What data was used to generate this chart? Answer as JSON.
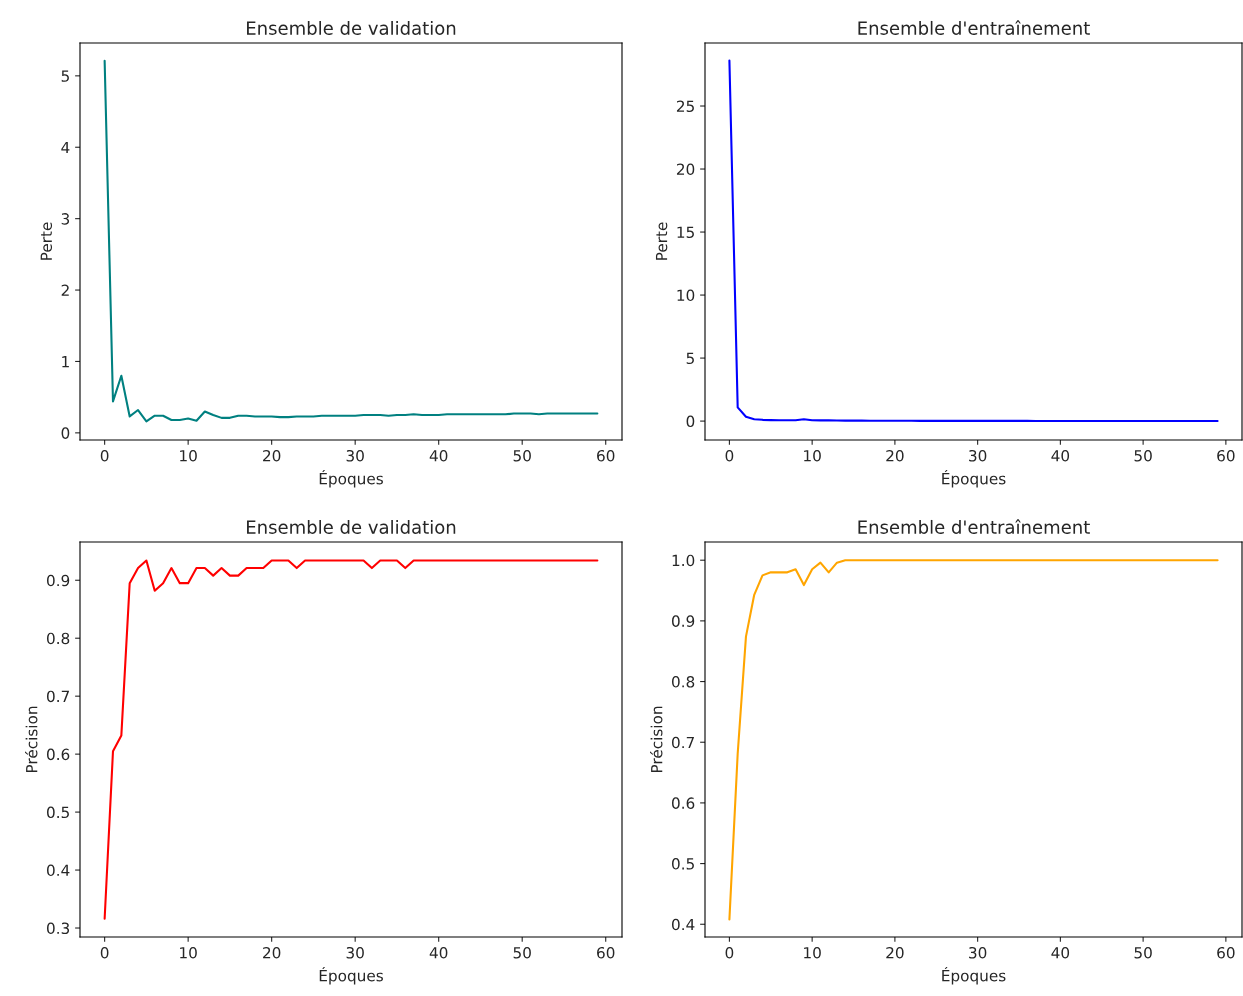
{
  "chart_data": [
    {
      "type": "line",
      "title": "Ensemble de validation",
      "xlabel": "Époques",
      "ylabel": "Perte",
      "xlim": [
        -2.95,
        61.95
      ],
      "xticks": [
        0,
        10,
        20,
        30,
        40,
        50,
        60
      ],
      "ylim": [
        -0.1,
        5.46
      ],
      "yticks": [
        0,
        1,
        2,
        3,
        4,
        5
      ],
      "grid": false,
      "series": [
        {
          "color": "#008080",
          "x": [
            0,
            1,
            2,
            3,
            4,
            5,
            6,
            7,
            8,
            9,
            10,
            11,
            12,
            13,
            14,
            15,
            16,
            17,
            18,
            19,
            20,
            21,
            22,
            23,
            24,
            25,
            26,
            27,
            28,
            29,
            30,
            31,
            32,
            33,
            34,
            35,
            36,
            37,
            38,
            39,
            40,
            41,
            42,
            43,
            44,
            45,
            46,
            47,
            48,
            49,
            50,
            51,
            52,
            53,
            54,
            55,
            56,
            57,
            58,
            59
          ],
          "values": [
            5.21,
            0.44,
            0.8,
            0.23,
            0.32,
            0.16,
            0.24,
            0.24,
            0.18,
            0.18,
            0.2,
            0.17,
            0.3,
            0.25,
            0.21,
            0.21,
            0.24,
            0.24,
            0.23,
            0.23,
            0.23,
            0.22,
            0.22,
            0.23,
            0.23,
            0.23,
            0.24,
            0.24,
            0.24,
            0.24,
            0.24,
            0.25,
            0.25,
            0.25,
            0.24,
            0.25,
            0.25,
            0.26,
            0.25,
            0.25,
            0.25,
            0.26,
            0.26,
            0.26,
            0.26,
            0.26,
            0.26,
            0.26,
            0.26,
            0.27,
            0.27,
            0.27,
            0.26,
            0.27,
            0.27,
            0.27,
            0.27,
            0.27,
            0.27,
            0.27
          ]
        }
      ]
    },
    {
      "type": "line",
      "title": "Ensemble d'entraînement",
      "xlabel": "Époques",
      "ylabel": "Perte",
      "xlim": [
        -2.95,
        61.95
      ],
      "xticks": [
        0,
        10,
        20,
        30,
        40,
        50,
        60
      ],
      "ylim": [
        -1.5,
        30.0
      ],
      "yticks": [
        0,
        5,
        10,
        15,
        20,
        25
      ],
      "grid": false,
      "series": [
        {
          "color": "#0000ff",
          "x": [
            0,
            1,
            2,
            3,
            4,
            5,
            6,
            7,
            8,
            9,
            10,
            11,
            12,
            13,
            14,
            15,
            16,
            17,
            18,
            19,
            20,
            21,
            22,
            23,
            24,
            25,
            26,
            27,
            28,
            29,
            30,
            31,
            32,
            33,
            34,
            35,
            36,
            37,
            38,
            39,
            40,
            41,
            42,
            43,
            44,
            45,
            46,
            47,
            48,
            49,
            50,
            51,
            52,
            53,
            54,
            55,
            56,
            57,
            58,
            59
          ],
          "values": [
            28.6,
            1.09,
            0.34,
            0.15,
            0.1,
            0.08,
            0.07,
            0.07,
            0.07,
            0.15,
            0.07,
            0.06,
            0.06,
            0.05,
            0.04,
            0.04,
            0.04,
            0.03,
            0.03,
            0.03,
            0.03,
            0.03,
            0.03,
            0.02,
            0.02,
            0.02,
            0.02,
            0.02,
            0.02,
            0.02,
            0.02,
            0.02,
            0.02,
            0.02,
            0.02,
            0.02,
            0.02,
            0.01,
            0.01,
            0.01,
            0.01,
            0.01,
            0.01,
            0.01,
            0.01,
            0.01,
            0.01,
            0.01,
            0.01,
            0.01,
            0.01,
            0.01,
            0.01,
            0.01,
            0.01,
            0.01,
            0.01,
            0.01,
            0.01,
            0.01
          ]
        }
      ]
    },
    {
      "type": "line",
      "title": "Ensemble de validation",
      "xlabel": "Époques",
      "ylabel": "Précision",
      "xlim": [
        -2.95,
        61.95
      ],
      "xticks": [
        0,
        10,
        20,
        30,
        40,
        50,
        60
      ],
      "ylim": [
        0.2845,
        0.966
      ],
      "yticks": [
        0.3,
        0.4,
        0.5,
        0.6,
        0.7,
        0.8,
        0.9
      ],
      "grid": false,
      "series": [
        {
          "color": "#ff0000",
          "x": [
            0,
            1,
            2,
            3,
            4,
            5,
            6,
            7,
            8,
            9,
            10,
            11,
            12,
            13,
            14,
            15,
            16,
            17,
            18,
            19,
            20,
            21,
            22,
            23,
            24,
            25,
            26,
            27,
            28,
            29,
            30,
            31,
            32,
            33,
            34,
            35,
            36,
            37,
            38,
            39,
            40,
            41,
            42,
            43,
            44,
            45,
            46,
            47,
            48,
            49,
            50,
            51,
            52,
            53,
            54,
            55,
            56,
            57,
            58,
            59
          ],
          "values": [
            0.316,
            0.605,
            0.632,
            0.895,
            0.921,
            0.934,
            0.882,
            0.895,
            0.921,
            0.895,
            0.895,
            0.921,
            0.921,
            0.908,
            0.921,
            0.908,
            0.908,
            0.921,
            0.921,
            0.921,
            0.934,
            0.934,
            0.934,
            0.921,
            0.934,
            0.934,
            0.934,
            0.934,
            0.934,
            0.934,
            0.934,
            0.934,
            0.921,
            0.934,
            0.934,
            0.934,
            0.921,
            0.934,
            0.934,
            0.934,
            0.934,
            0.934,
            0.934,
            0.934,
            0.934,
            0.934,
            0.934,
            0.934,
            0.934,
            0.934,
            0.934,
            0.934,
            0.934,
            0.934,
            0.934,
            0.934,
            0.934,
            0.934,
            0.934,
            0.934
          ]
        }
      ]
    },
    {
      "type": "line",
      "title": "Ensemble d'entraînement",
      "xlabel": "Époques",
      "ylabel": "Précision",
      "xlim": [
        -2.95,
        61.95
      ],
      "xticks": [
        0,
        10,
        20,
        30,
        40,
        50,
        60
      ],
      "ylim": [
        0.379,
        1.03
      ],
      "yticks": [
        0.4,
        0.5,
        0.6,
        0.7,
        0.8,
        0.9,
        {
          "value": 1,
          "label": "1.0"
        }
      ],
      "grid": false,
      "series": [
        {
          "color": "#ffa500",
          "x": [
            0,
            1,
            2,
            3,
            4,
            5,
            6,
            7,
            8,
            9,
            10,
            11,
            12,
            13,
            14,
            15,
            16,
            17,
            18,
            19,
            20,
            21,
            22,
            23,
            24,
            25,
            26,
            27,
            28,
            29,
            30,
            31,
            32,
            33,
            34,
            35,
            36,
            37,
            38,
            39,
            40,
            41,
            42,
            43,
            44,
            45,
            46,
            47,
            48,
            49,
            50,
            51,
            52,
            53,
            54,
            55,
            56,
            57,
            58,
            59
          ],
          "values": [
            0.408,
            0.681,
            0.874,
            0.943,
            0.975,
            0.98,
            0.98,
            0.98,
            0.985,
            0.959,
            0.985,
            0.996,
            0.98,
            0.996,
            1.0,
            1.0,
            1.0,
            1.0,
            1.0,
            1.0,
            1.0,
            1.0,
            1.0,
            1.0,
            1.0,
            1.0,
            1.0,
            1.0,
            1.0,
            1.0,
            1.0,
            1.0,
            1.0,
            1.0,
            1.0,
            1.0,
            1.0,
            1.0,
            1.0,
            1.0,
            1.0,
            1.0,
            1.0,
            1.0,
            1.0,
            1.0,
            1.0,
            1.0,
            1.0,
            1.0,
            1.0,
            1.0,
            1.0,
            1.0,
            1.0,
            1.0,
            1.0,
            1.0,
            1.0,
            1.0
          ]
        }
      ]
    }
  ]
}
